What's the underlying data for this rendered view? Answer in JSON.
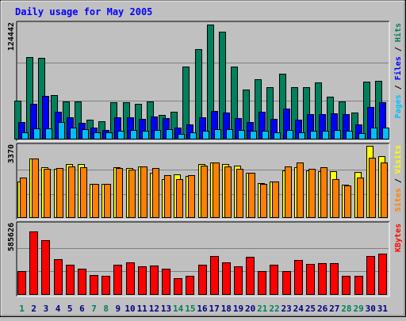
{
  "chart_data": [
    {
      "type": "bar",
      "title": "Daily usage for May 2005",
      "ymax_label": "124442",
      "ylabel_parts": [
        "Pages",
        "Files",
        "Hits"
      ],
      "ylim": [
        0,
        124442
      ],
      "grid": true,
      "categories": [
        "1",
        "2",
        "3",
        "4",
        "5",
        "6",
        "7",
        "8",
        "9",
        "10",
        "11",
        "12",
        "13",
        "14",
        "15",
        "16",
        "17",
        "18",
        "19",
        "20",
        "21",
        "22",
        "23",
        "24",
        "25",
        "26",
        "27",
        "28",
        "29",
        "30",
        "31"
      ],
      "series": [
        {
          "name": "Hits",
          "color": "#00805c",
          "values": [
            42000,
            89000,
            88000,
            48000,
            41000,
            41000,
            21000,
            20000,
            40000,
            40000,
            38000,
            41000,
            26000,
            30000,
            78000,
            97000,
            124000,
            116000,
            78000,
            54000,
            65000,
            56000,
            71000,
            56000,
            56000,
            61000,
            46000,
            41000,
            29000,
            62000,
            63000
          ]
        },
        {
          "name": "Files",
          "color": "#0000ff",
          "values": [
            19000,
            38000,
            47000,
            30000,
            24000,
            18000,
            13000,
            10000,
            24000,
            24000,
            22000,
            25000,
            23000,
            13000,
            16000,
            24000,
            31000,
            29000,
            23000,
            19000,
            30000,
            22000,
            33000,
            21000,
            27000,
            27000,
            28000,
            27000,
            16000,
            35000,
            40000
          ]
        },
        {
          "name": "Pages",
          "color": "#00bfff",
          "values": [
            8000,
            12000,
            12000,
            19000,
            13000,
            11000,
            8000,
            8000,
            9000,
            10000,
            9000,
            10000,
            11000,
            6000,
            8000,
            9000,
            11000,
            11000,
            10000,
            9000,
            9000,
            8000,
            10000,
            8000,
            9000,
            9000,
            10000,
            9000,
            7000,
            13000,
            13000
          ]
        }
      ]
    },
    {
      "type": "bar",
      "ymax_label": "3370",
      "ylabel_parts": [
        "Sites",
        "Visits"
      ],
      "ylim": [
        0,
        3370
      ],
      "grid": true,
      "categories": [
        "1",
        "2",
        "3",
        "4",
        "5",
        "6",
        "7",
        "8",
        "9",
        "10",
        "11",
        "12",
        "13",
        "14",
        "15",
        "16",
        "17",
        "18",
        "19",
        "20",
        "21",
        "22",
        "23",
        "24",
        "25",
        "26",
        "27",
        "28",
        "29",
        "30",
        "31"
      ],
      "series": [
        {
          "name": "Visits",
          "color": "#ffff00",
          "values": [
            1700,
            2780,
            2380,
            2300,
            2520,
            2500,
            1600,
            1600,
            2380,
            2340,
            2410,
            2110,
            1810,
            2020,
            1960,
            2500,
            2580,
            2500,
            2460,
            2100,
            1620,
            1700,
            2240,
            2380,
            2240,
            2200,
            2180,
            1550,
            2140,
            3370,
            2880
          ]
        },
        {
          "name": "Sites",
          "color": "#ff8000",
          "values": [
            1900,
            2780,
            2300,
            2330,
            2400,
            2360,
            1600,
            1610,
            2350,
            2250,
            2400,
            2350,
            2000,
            1800,
            2000,
            2450,
            2600,
            2400,
            2300,
            2100,
            1600,
            1700,
            2400,
            2600,
            2300,
            2370,
            1800,
            1500,
            1900,
            2800,
            2600
          ]
        }
      ]
    },
    {
      "type": "bar",
      "ymax_label": "585626",
      "ylabel_parts": [
        "KBytes"
      ],
      "ylim": [
        0,
        585626
      ],
      "grid": true,
      "categories": [
        "1",
        "2",
        "3",
        "4",
        "5",
        "6",
        "7",
        "8",
        "9",
        "10",
        "11",
        "12",
        "13",
        "14",
        "15",
        "16",
        "17",
        "18",
        "19",
        "20",
        "21",
        "22",
        "23",
        "24",
        "25",
        "26",
        "27",
        "28",
        "29",
        "30",
        "31"
      ],
      "series": [
        {
          "name": "KBytes",
          "color": "#ff0000",
          "values": [
            200000,
            525000,
            451000,
            293000,
            248000,
            219000,
            165000,
            157000,
            252000,
            271000,
            240000,
            246000,
            219000,
            135000,
            160000,
            251000,
            320000,
            271000,
            240000,
            316000,
            199000,
            250000,
            200000,
            290000,
            259000,
            260000,
            260000,
            158000,
            159000,
            325000,
            340000
          ]
        }
      ]
    }
  ],
  "axis": {
    "days": [
      "1",
      "2",
      "3",
      "4",
      "5",
      "6",
      "7",
      "8",
      "9",
      "10",
      "11",
      "12",
      "13",
      "14",
      "15",
      "16",
      "17",
      "18",
      "19",
      "20",
      "21",
      "22",
      "23",
      "24",
      "25",
      "26",
      "27",
      "28",
      "29",
      "30",
      "31"
    ],
    "weekend_days": [
      1,
      7,
      8,
      14,
      15,
      21,
      22,
      28,
      29
    ],
    "weekday_color": "#000080",
    "weekend_color": "#00805c"
  },
  "colors": {
    "title": "#0000ff",
    "background": "#c0c0c0",
    "grid": "#808080",
    "bar_border": "#000000"
  }
}
